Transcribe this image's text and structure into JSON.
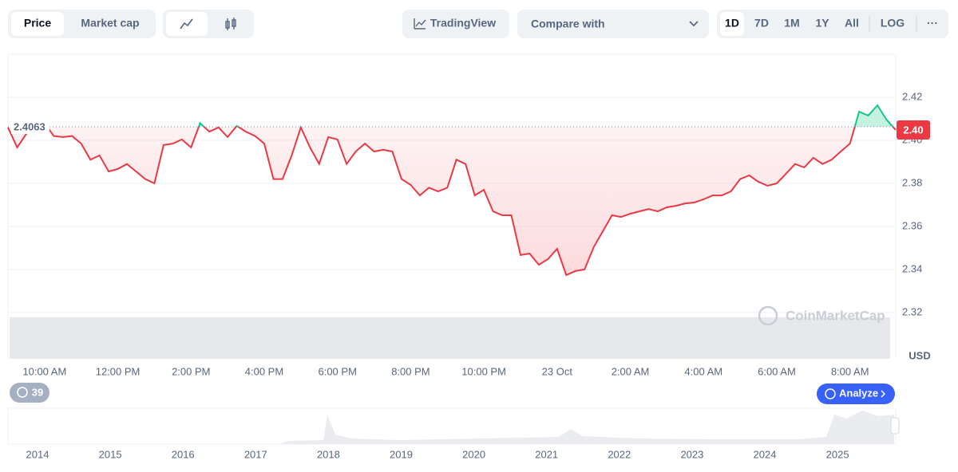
{
  "toolbar": {
    "views": [
      "Price",
      "Market cap"
    ],
    "tradingview": "TradingView",
    "compare": "Compare with",
    "ranges": [
      "1D",
      "7D",
      "1M",
      "1Y",
      "All"
    ],
    "log": "LOG",
    "more": "···"
  },
  "chart_data": {
    "type": "line",
    "categories": [
      null,
      null,
      null,
      null,
      "10:00 AM",
      null,
      null,
      null,
      null,
      null,
      null,
      null,
      "12:00 PM",
      null,
      null,
      null,
      null,
      null,
      null,
      null,
      "2:00 PM",
      null,
      null,
      null,
      null,
      null,
      null,
      null,
      "4:00 PM",
      null,
      null,
      null,
      null,
      null,
      null,
      null,
      "6:00 PM",
      null,
      null,
      null,
      null,
      null,
      null,
      null,
      "8:00 PM",
      null,
      null,
      null,
      null,
      null,
      null,
      null,
      "10:00 PM",
      null,
      null,
      null,
      null,
      null,
      null,
      null,
      "23 Oct",
      null,
      null,
      null,
      null,
      null,
      null,
      null,
      "2:00 AM",
      null,
      null,
      null,
      null,
      null,
      null,
      null,
      "4:00 AM",
      null,
      null,
      null,
      null,
      null,
      null,
      null,
      "6:00 AM",
      null,
      null,
      null,
      null,
      null,
      null,
      null,
      "8:00 AM",
      null,
      null,
      null,
      null,
      null
    ],
    "values": [
      2.406,
      2.3967,
      2.403,
      2.407,
      2.408,
      2.402,
      2.4015,
      2.402,
      2.3985,
      2.391,
      2.393,
      2.3855,
      2.3867,
      2.389,
      2.3855,
      2.382,
      2.38,
      2.3978,
      2.3985,
      2.4004,
      2.3967,
      2.408,
      2.404,
      2.406,
      2.4015,
      2.4067,
      2.404,
      2.402,
      2.3985,
      2.382,
      2.382,
      2.393,
      2.406,
      2.3967,
      2.389,
      2.4015,
      2.4004,
      2.389,
      2.3948,
      2.3985,
      2.3948,
      2.3956,
      2.3948,
      2.382,
      2.3793,
      2.3744,
      2.378,
      2.3763,
      2.378,
      2.391,
      2.389,
      2.3744,
      2.377,
      2.367,
      2.3652,
      2.3652,
      2.3467,
      2.3474,
      2.3422,
      2.3448,
      2.3496,
      2.3374,
      2.3393,
      2.34,
      2.3504,
      2.3578,
      2.3652,
      2.3644,
      2.3659,
      2.367,
      2.3681,
      2.367,
      2.3689,
      2.3696,
      2.3707,
      2.3711,
      2.3726,
      2.3744,
      2.3744,
      2.3763,
      2.382,
      2.3837,
      2.3807,
      2.3789,
      2.38,
      2.3844,
      2.389,
      2.3874,
      2.3919,
      2.389,
      2.391,
      2.3948,
      2.3985,
      2.4133,
      2.4115,
      2.4163,
      2.4096,
      2.4048
    ],
    "color_below": "#ea3943",
    "color_above": "#16c784",
    "reference": 2.4063,
    "current_price": {
      "value": 2.4048,
      "label": "2.40"
    },
    "ylim": [
      2.3,
      2.44
    ],
    "yticks": [
      {
        "value": 2.32,
        "label": "2.32"
      },
      {
        "value": 2.34,
        "label": "2.34"
      },
      {
        "value": 2.36,
        "label": "2.36"
      },
      {
        "value": 2.38,
        "label": "2.38"
      },
      {
        "value": 2.4,
        "label": "2.40"
      },
      {
        "value": 2.42,
        "label": "2.42"
      }
    ],
    "grid": true,
    "currency": "USD",
    "watermark": "CoinMarketCap"
  },
  "alerts": 39,
  "analyze": "Analyze",
  "navigator": {
    "years": [
      "2014",
      "2015",
      "2016",
      "2017",
      "2018",
      "2019",
      "2020",
      "2021",
      "2022",
      "2023",
      "2024",
      "2025"
    ]
  }
}
